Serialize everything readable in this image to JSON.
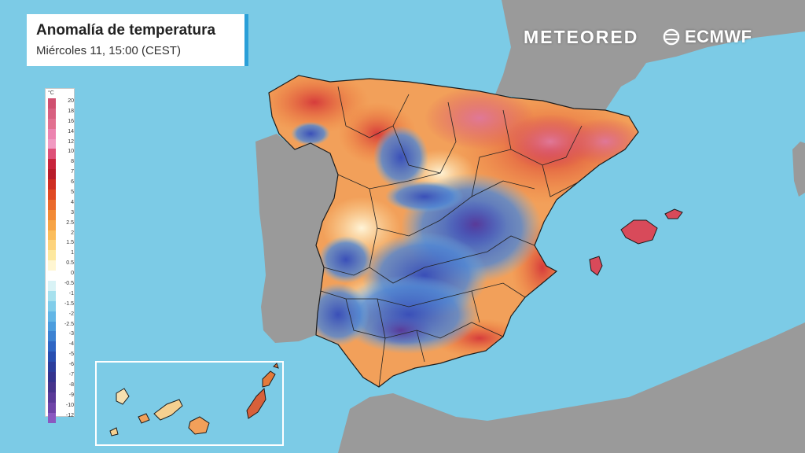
{
  "header": {
    "title": "Anomalía de temperatura",
    "subtitle": "Miércoles 11, 15:00 (CEST)"
  },
  "brands": {
    "meteored": "METEORED",
    "ecmwf": "ECMWF"
  },
  "legend": {
    "unit": "°C",
    "labels": [
      "20",
      "18",
      "16",
      "14",
      "12",
      "10",
      "8",
      "7",
      "6",
      "5",
      "4",
      "3",
      "2.5",
      "2",
      "1.5",
      "1",
      "0.5",
      "0",
      "-0.5",
      "-1",
      "-1.5",
      "-2",
      "-2.5",
      "-3",
      "-4",
      "-5",
      "-6",
      "-7",
      "-8",
      "-9",
      "-10",
      "-12"
    ],
    "colors": [
      "#d05070",
      "#d86080",
      "#e27090",
      "#ec84b0",
      "#f19ac2",
      "#de5078",
      "#c8243c",
      "#b81c2a",
      "#cf2e22",
      "#e04a24",
      "#ea6a2c",
      "#f28a36",
      "#f7a446",
      "#fbbd5c",
      "#fdd37c",
      "#fde89f",
      "#fff6d2",
      "#ffffff",
      "#d9f3f6",
      "#a6e1ee",
      "#80cdea",
      "#62b6e6",
      "#4b9dde",
      "#3c82d2",
      "#2f66c4",
      "#284eb0",
      "#2b3d9c",
      "#34338e",
      "#46348c",
      "#5a3a98",
      "#6f44a8",
      "#8a58c0"
    ]
  },
  "colors": {
    "sea": "#7ccbe6",
    "land": "#9a9a9a",
    "accent": "#2a9fd8"
  }
}
